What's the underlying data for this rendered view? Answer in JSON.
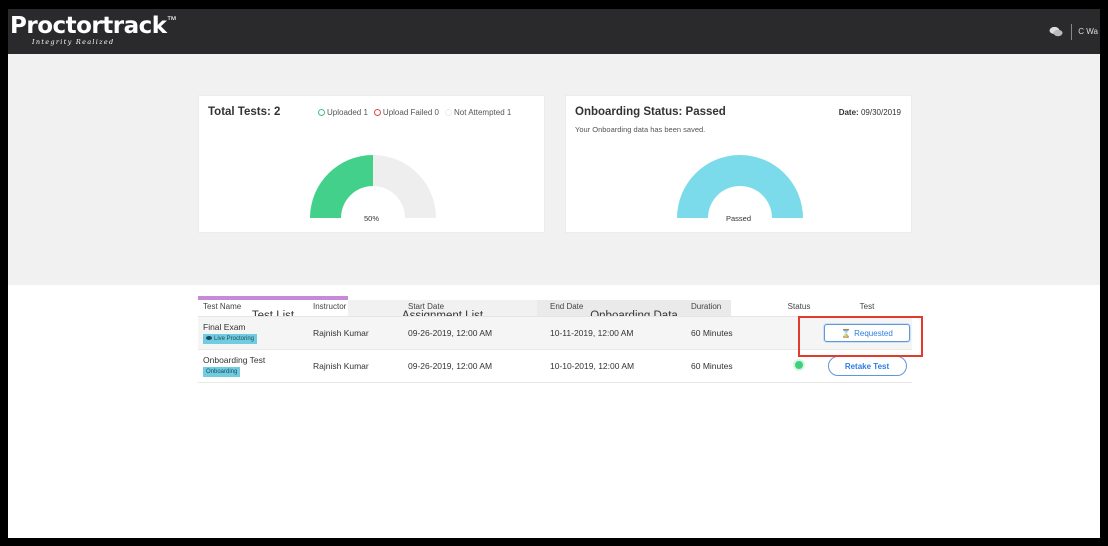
{
  "app": {
    "logo_text": "Proctortrack",
    "logo_tm": "™",
    "logo_tagline": "Integrity Realized"
  },
  "topbar": {
    "icons": [
      "chat-icon"
    ],
    "user_name": "C Wa"
  },
  "summary": {
    "title": "Total Tests: 2",
    "legend": [
      {
        "label": "Uploaded 1",
        "color": "#3fc47e"
      },
      {
        "label": "Upload Failed 0",
        "color": "#e24b4b"
      },
      {
        "label": "Not Attempted 1",
        "color": "#eeeeee"
      }
    ],
    "percent_label": "50%",
    "uploaded_fraction": 0.5,
    "colors": {
      "filled": "#42d08a",
      "empty": "#eeeeee"
    }
  },
  "onboarding": {
    "title": "Onboarding Status: Passed",
    "subtitle": "Your Onboarding data has been saved.",
    "date_label": "Date:",
    "date_value": "09/30/2019",
    "gauge_label": "Passed",
    "gauge_color": "#7bdbea"
  },
  "tabs": [
    {
      "label": "Test List",
      "active": true
    },
    {
      "label": "Assignment List",
      "active": false
    },
    {
      "label": "Onboarding Data",
      "active": false
    }
  ],
  "table": {
    "headers": {
      "name": "Test Name",
      "instructor": "Instructor",
      "start": "Start Date",
      "end": "End Date",
      "duration": "Duration",
      "status": "Status",
      "test": "Test"
    },
    "rows": [
      {
        "name": "Final Exam",
        "tag": "Live Proctoring",
        "instructor": "Rajnish Kumar",
        "start": "09-26-2019, 12:00 AM",
        "end": "10-11-2019, 12:00 AM",
        "duration": "60 Minutes",
        "action": "Requested",
        "action_icon": "hourglass-icon"
      },
      {
        "name": "Onboarding Test",
        "tag": "Onboarding",
        "instructor": "Rajnish Kumar",
        "start": "09-26-2019, 12:00 AM",
        "end": "10-10-2019, 12:00 AM",
        "duration": "60 Minutes",
        "status_color": "#3fd07b",
        "action": "Retake Test"
      }
    ]
  }
}
